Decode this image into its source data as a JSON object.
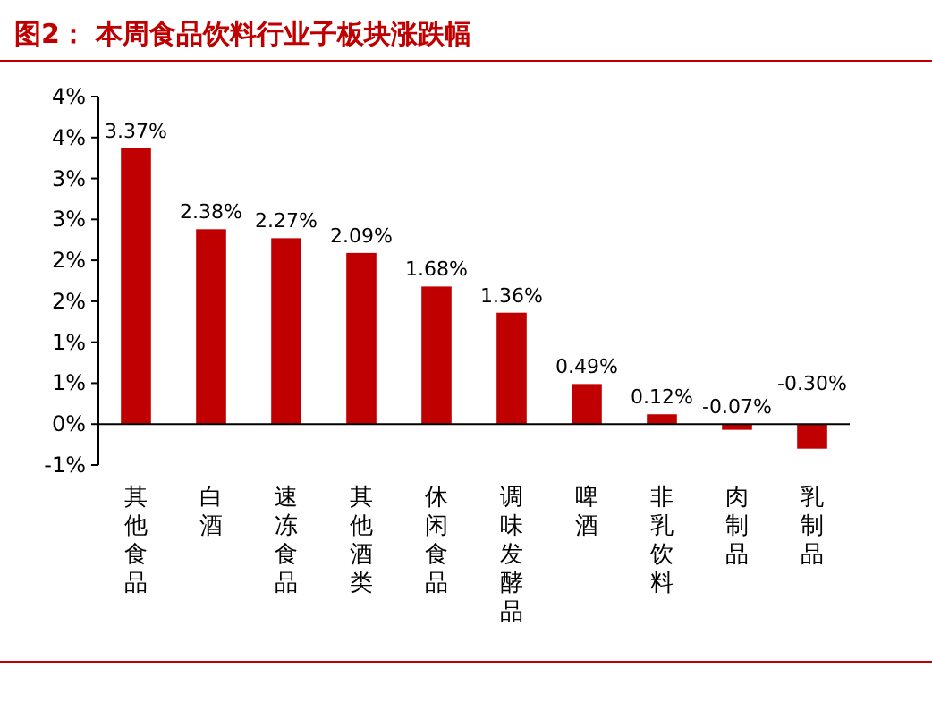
{
  "chart_data": {
    "type": "bar",
    "title": "图2：  本周食品饮料行业子板块涨跌幅",
    "categories": [
      "其他食品",
      "白酒",
      "速冻食品",
      "其他酒类",
      "休闲食品",
      "调味发酵品",
      "啤酒",
      "非乳饮料",
      "肉制品",
      "乳制品"
    ],
    "values": [
      3.37,
      2.38,
      2.27,
      2.09,
      1.68,
      1.36,
      0.49,
      0.12,
      -0.07,
      -0.3
    ],
    "color": "#c00000",
    "ylim": [
      -0.5,
      4.0
    ],
    "yticks": [
      {
        "value": -0.5,
        "label": "-1%"
      },
      {
        "value": 0,
        "label": "0%"
      },
      {
        "value": 0.5,
        "label": "1%"
      },
      {
        "value": 1.0,
        "label": "1%"
      },
      {
        "value": 1.5,
        "label": "2%"
      },
      {
        "value": 2.0,
        "label": "2%"
      },
      {
        "value": 2.5,
        "label": "3%"
      },
      {
        "value": 3.0,
        "label": "3%"
      },
      {
        "value": 3.5,
        "label": "4%"
      },
      {
        "value": 4.0,
        "label": "4%"
      }
    ],
    "value_labels": [
      "3.37%",
      "2.38%",
      "2.27%",
      "2.09%",
      "1.68%",
      "1.36%",
      "0.49%",
      "0.12%",
      "-0.07%",
      "-0.30%"
    ]
  }
}
